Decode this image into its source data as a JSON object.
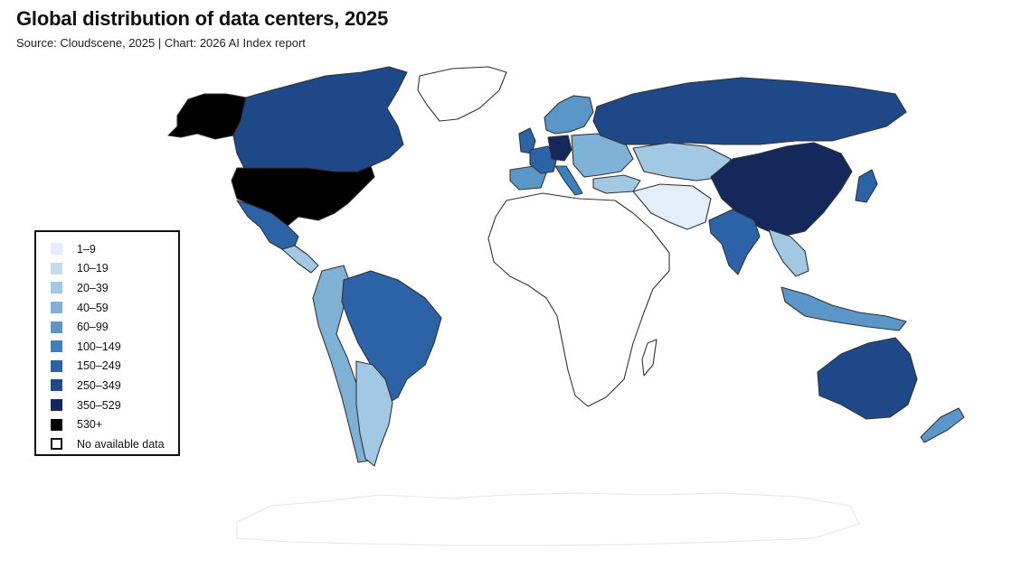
{
  "title": "Global distribution of data centers, 2025",
  "subtitle": "Source: Cloudscene, 2025 | Chart: 2026 AI Index report",
  "colors": {
    "b1": "#e4eef9",
    "b2": "#c8dcf0",
    "b3": "#a3c8e3",
    "b4": "#7fb0d6",
    "b5": "#5b96c8",
    "b6": "#3d7fc0",
    "b7": "#2c62a6",
    "b8": "#1f4889",
    "b9": "#14285c",
    "b10": "#000000",
    "none": "#ffffff"
  },
  "legend": [
    {
      "label": "1–9",
      "bin": "b1"
    },
    {
      "label": "10–19",
      "bin": "b2"
    },
    {
      "label": "20–39",
      "bin": "b3"
    },
    {
      "label": "40–59",
      "bin": "b4"
    },
    {
      "label": "60–99",
      "bin": "b5"
    },
    {
      "label": "100–149",
      "bin": "b6"
    },
    {
      "label": "150–249",
      "bin": "b7"
    },
    {
      "label": "250–349",
      "bin": "b8"
    },
    {
      "label": "350–529",
      "bin": "b9"
    },
    {
      "label": "530+",
      "bin": "b10"
    },
    {
      "label": "No available data",
      "bin": "none"
    }
  ],
  "regions": [
    {
      "id": "alaska",
      "bin": "b10"
    },
    {
      "id": "canada",
      "bin": "b8"
    },
    {
      "id": "usa",
      "bin": "b10"
    },
    {
      "id": "mexico",
      "bin": "b7"
    },
    {
      "id": "central-america",
      "bin": "b3"
    },
    {
      "id": "brazil",
      "bin": "b7"
    },
    {
      "id": "andes",
      "bin": "b4"
    },
    {
      "id": "argentina",
      "bin": "b3"
    },
    {
      "id": "greenland",
      "bin": "none"
    },
    {
      "id": "uk",
      "bin": "b7"
    },
    {
      "id": "france",
      "bin": "b7"
    },
    {
      "id": "germany",
      "bin": "b9"
    },
    {
      "id": "iberia",
      "bin": "b5"
    },
    {
      "id": "italy",
      "bin": "b6"
    },
    {
      "id": "scandinavia",
      "bin": "b5"
    },
    {
      "id": "eastern-europe",
      "bin": "b4"
    },
    {
      "id": "turkey",
      "bin": "b3"
    },
    {
      "id": "russia",
      "bin": "b8"
    },
    {
      "id": "kazakhstan",
      "bin": "b3"
    },
    {
      "id": "china",
      "bin": "b9"
    },
    {
      "id": "india",
      "bin": "b7"
    },
    {
      "id": "middle-east",
      "bin": "b1"
    },
    {
      "id": "southeast-asia",
      "bin": "b3"
    },
    {
      "id": "japan",
      "bin": "b7"
    },
    {
      "id": "indonesia",
      "bin": "b5"
    },
    {
      "id": "australia",
      "bin": "b8"
    },
    {
      "id": "new-zealand",
      "bin": "b5"
    },
    {
      "id": "africa",
      "bin": "none"
    },
    {
      "id": "antarctica",
      "bin": "none"
    }
  ]
}
